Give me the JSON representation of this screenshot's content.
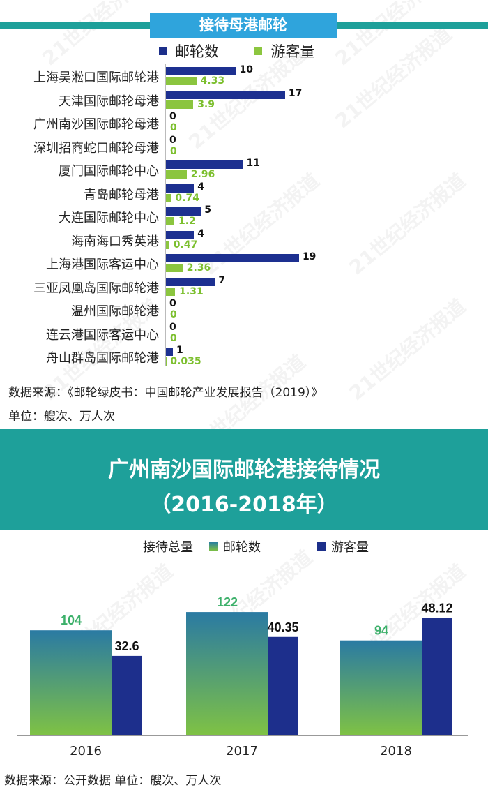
{
  "top_chart": {
    "title": "接待母港邮轮",
    "legend": {
      "ships": "邮轮数",
      "visitors": "游客量"
    },
    "colors": {
      "ships": "#1d3090",
      "visitors": "#8bc53f",
      "title_bg": "#2fa4dc",
      "band": "#1ea09a"
    },
    "source": "数据来源：《邮轮绿皮书：中国邮轮产业发展报告（2019）》",
    "unit": "单位：艘次、万人次"
  },
  "bottom_chart": {
    "title_line1": "广州南沙国际邮轮港接待情况",
    "title_line2": "（2016-2018年）",
    "legend": {
      "total": "接待总量",
      "ships": "邮轮数",
      "visitors": "游客量"
    },
    "source": "数据来源：公开数据  单位：艘次、万人次"
  },
  "watermark": "21世纪经济报道",
  "chart_data": [
    {
      "type": "bar",
      "orientation": "horizontal",
      "title": "接待母港邮轮",
      "categories": [
        "上海吴淞口国际邮轮港",
        "天津国际邮轮母港",
        "广州南沙国际邮轮母港",
        "深圳招商蛇口邮轮母港",
        "厦门国际邮轮中心",
        "青岛邮轮母港",
        "大连国际邮轮中心",
        "海南海口秀英港",
        "上海港国际客运中心",
        "三亚凤凰岛国际邮轮港",
        "温州国际邮轮港",
        "连云港国际客运中心",
        "舟山群岛国际邮轮港"
      ],
      "series": [
        {
          "name": "邮轮数",
          "values": [
            10,
            17,
            0,
            0,
            11,
            4,
            5,
            4,
            19,
            7,
            0,
            0,
            1
          ],
          "labels": [
            "10",
            "17",
            "0",
            "0",
            "11",
            "4",
            "5",
            "4",
            "19",
            "7",
            "0",
            "0",
            "1"
          ]
        },
        {
          "name": "游客量",
          "values": [
            4.33,
            3.9,
            0,
            0,
            2.96,
            0.74,
            1.2,
            0.47,
            2.36,
            1.31,
            0,
            0,
            0.035
          ],
          "labels": [
            "4.33",
            "3.9",
            "0",
            "0",
            "2.96",
            "0.74",
            "1.2",
            "0.47",
            "2.36",
            "1.31",
            "0",
            "0",
            "0.035"
          ]
        }
      ],
      "xlim": [
        0,
        19
      ]
    },
    {
      "type": "bar",
      "orientation": "vertical",
      "title": "广州南沙国际邮轮港接待情况（2016-2018年）",
      "categories": [
        "2016",
        "2017",
        "2018"
      ],
      "series": [
        {
          "name": "邮轮数",
          "values": [
            104,
            122,
            94
          ],
          "labels": [
            "104",
            "122",
            "94"
          ]
        },
        {
          "name": "游客量",
          "values": [
            32.6,
            40.35,
            48.12
          ],
          "labels": [
            "32.6",
            "40.35",
            "48.12"
          ]
        }
      ]
    }
  ]
}
